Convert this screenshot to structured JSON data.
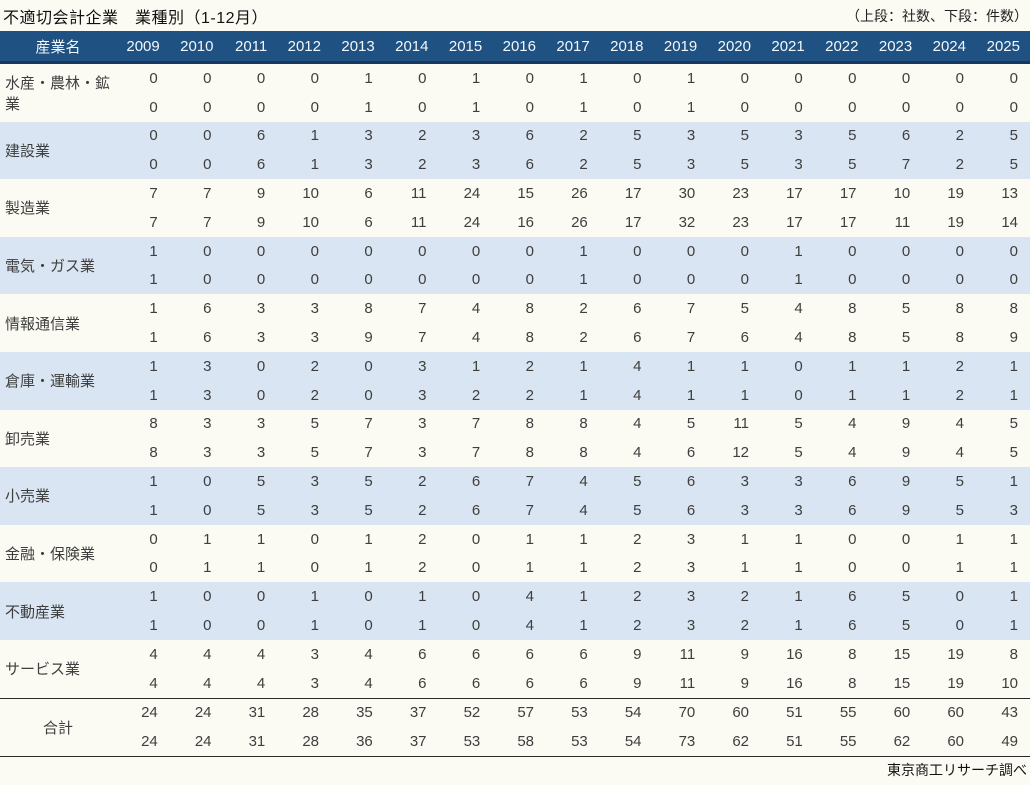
{
  "chart_data": {
    "type": "table",
    "title": "不適切会計企業　業種別（1-12月）",
    "unit_note": "（上段：社数、下段：件数）",
    "label_header": "産業名",
    "years": [
      "2009",
      "2010",
      "2011",
      "2012",
      "2013",
      "2014",
      "2015",
      "2016",
      "2017",
      "2018",
      "2019",
      "2020",
      "2021",
      "2022",
      "2023",
      "2024",
      "2025"
    ],
    "row_structure": "each industry has two value rows: companies (社数) then cases (件数)",
    "rows": [
      {
        "label": "水産・農林・鉱業",
        "companies": [
          0,
          0,
          0,
          0,
          1,
          0,
          1,
          0,
          1,
          0,
          1,
          0,
          0,
          0,
          0,
          0,
          0
        ],
        "cases": [
          0,
          0,
          0,
          0,
          1,
          0,
          1,
          0,
          1,
          0,
          1,
          0,
          0,
          0,
          0,
          0,
          0
        ]
      },
      {
        "label": "建設業",
        "companies": [
          0,
          0,
          6,
          1,
          3,
          2,
          3,
          6,
          2,
          5,
          3,
          5,
          3,
          5,
          6,
          2,
          5
        ],
        "cases": [
          0,
          0,
          6,
          1,
          3,
          2,
          3,
          6,
          2,
          5,
          3,
          5,
          3,
          5,
          7,
          2,
          5
        ]
      },
      {
        "label": "製造業",
        "companies": [
          7,
          7,
          9,
          10,
          6,
          11,
          24,
          15,
          26,
          17,
          30,
          23,
          17,
          17,
          10,
          19,
          13
        ],
        "cases": [
          7,
          7,
          9,
          10,
          6,
          11,
          24,
          16,
          26,
          17,
          32,
          23,
          17,
          17,
          11,
          19,
          14
        ]
      },
      {
        "label": "電気・ガス業",
        "companies": [
          1,
          0,
          0,
          0,
          0,
          0,
          0,
          0,
          1,
          0,
          0,
          0,
          1,
          0,
          0,
          0,
          0
        ],
        "cases": [
          1,
          0,
          0,
          0,
          0,
          0,
          0,
          0,
          1,
          0,
          0,
          0,
          1,
          0,
          0,
          0,
          0
        ]
      },
      {
        "label": "情報通信業",
        "companies": [
          1,
          6,
          3,
          3,
          8,
          7,
          4,
          8,
          2,
          6,
          7,
          5,
          4,
          8,
          5,
          8,
          8
        ],
        "cases": [
          1,
          6,
          3,
          3,
          9,
          7,
          4,
          8,
          2,
          6,
          7,
          6,
          4,
          8,
          5,
          8,
          9
        ]
      },
      {
        "label": "倉庫・運輸業",
        "companies": [
          1,
          3,
          0,
          2,
          0,
          3,
          1,
          2,
          1,
          4,
          1,
          1,
          0,
          1,
          1,
          2,
          1
        ],
        "cases": [
          1,
          3,
          0,
          2,
          0,
          3,
          2,
          2,
          1,
          4,
          1,
          1,
          0,
          1,
          1,
          2,
          1
        ]
      },
      {
        "label": "卸売業",
        "companies": [
          8,
          3,
          3,
          5,
          7,
          3,
          7,
          8,
          8,
          4,
          5,
          11,
          5,
          4,
          9,
          4,
          5
        ],
        "cases": [
          8,
          3,
          3,
          5,
          7,
          3,
          7,
          8,
          8,
          4,
          6,
          12,
          5,
          4,
          9,
          4,
          5
        ]
      },
      {
        "label": "小売業",
        "companies": [
          1,
          0,
          5,
          3,
          5,
          2,
          6,
          7,
          4,
          5,
          6,
          3,
          3,
          6,
          9,
          5,
          1
        ],
        "cases": [
          1,
          0,
          5,
          3,
          5,
          2,
          6,
          7,
          4,
          5,
          6,
          3,
          3,
          6,
          9,
          5,
          3
        ]
      },
      {
        "label": "金融・保険業",
        "companies": [
          0,
          1,
          1,
          0,
          1,
          2,
          0,
          1,
          1,
          2,
          3,
          1,
          1,
          0,
          0,
          1,
          1
        ],
        "cases": [
          0,
          1,
          1,
          0,
          1,
          2,
          0,
          1,
          1,
          2,
          3,
          1,
          1,
          0,
          0,
          1,
          1
        ]
      },
      {
        "label": "不動産業",
        "companies": [
          1,
          0,
          0,
          1,
          0,
          1,
          0,
          4,
          1,
          2,
          3,
          2,
          1,
          6,
          5,
          0,
          1
        ],
        "cases": [
          1,
          0,
          0,
          1,
          0,
          1,
          0,
          4,
          1,
          2,
          3,
          2,
          1,
          6,
          5,
          0,
          1
        ]
      },
      {
        "label": "サービス業",
        "companies": [
          4,
          4,
          4,
          3,
          4,
          6,
          6,
          6,
          6,
          9,
          11,
          9,
          16,
          8,
          15,
          19,
          8
        ],
        "cases": [
          4,
          4,
          4,
          3,
          4,
          6,
          6,
          6,
          6,
          9,
          11,
          9,
          16,
          8,
          15,
          19,
          10
        ]
      },
      {
        "label": "合計",
        "total": true,
        "companies": [
          24,
          24,
          31,
          28,
          35,
          37,
          52,
          57,
          53,
          54,
          70,
          60,
          51,
          55,
          60,
          60,
          43
        ],
        "cases": [
          24,
          24,
          31,
          28,
          36,
          37,
          53,
          58,
          53,
          54,
          73,
          62,
          51,
          55,
          62,
          60,
          49
        ]
      }
    ],
    "source": "東京商工リサーチ調べ",
    "colors": {
      "header_bg": "#1F5182",
      "header_text": "#F2F7FC",
      "header_border": "#17375E",
      "band_bg": "#D9E5F2",
      "body_text": "#3E3E3E",
      "total_border": "#2A2A2A"
    }
  }
}
